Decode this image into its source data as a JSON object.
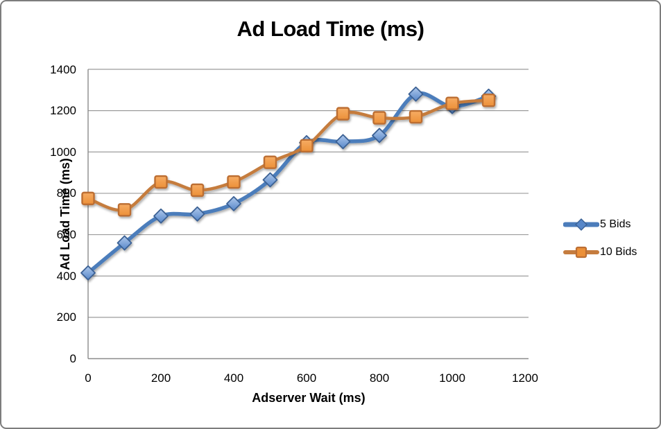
{
  "chart_data": {
    "type": "line",
    "title": "Ad Load Time (ms)",
    "xlabel": "Adserver Wait (ms)",
    "ylabel": "Ad Load Time (ms)",
    "x": [
      0,
      100,
      200,
      300,
      400,
      500,
      600,
      700,
      800,
      900,
      1000,
      1100
    ],
    "series": [
      {
        "name": "5 Bids",
        "marker": "diamond",
        "line_color": "#4C7DBB",
        "marker_fill_top": "#AFC9EC",
        "marker_fill_bottom": "#5787C9",
        "marker_stroke": "#3A6194",
        "line_width": 5.5,
        "values": [
          415,
          560,
          690,
          700,
          750,
          865,
          1045,
          1050,
          1080,
          1280,
          1220,
          1270
        ]
      },
      {
        "name": "10 Bids",
        "marker": "square",
        "line_color": "#C57C3E",
        "marker_fill_top": "#F6AC64",
        "marker_fill_bottom": "#EC9038",
        "marker_stroke": "#BC6E33",
        "line_width": 4.5,
        "values": [
          775,
          720,
          855,
          815,
          855,
          950,
          1030,
          1185,
          1165,
          1170,
          1235,
          1250
        ]
      }
    ],
    "xlim": [
      0,
      1200
    ],
    "ylim": [
      0,
      1400
    ],
    "xticks": [
      0,
      200,
      400,
      600,
      800,
      1000,
      1200
    ],
    "yticks": [
      0,
      200,
      400,
      600,
      800,
      1000,
      1200,
      1400
    ],
    "grid": "horizontal",
    "grid_color": "#9b9b9b",
    "axis_color": "#8a8a8a",
    "legend_position": "right",
    "background": "#ffffff",
    "border_color": "#7d7d7d"
  }
}
